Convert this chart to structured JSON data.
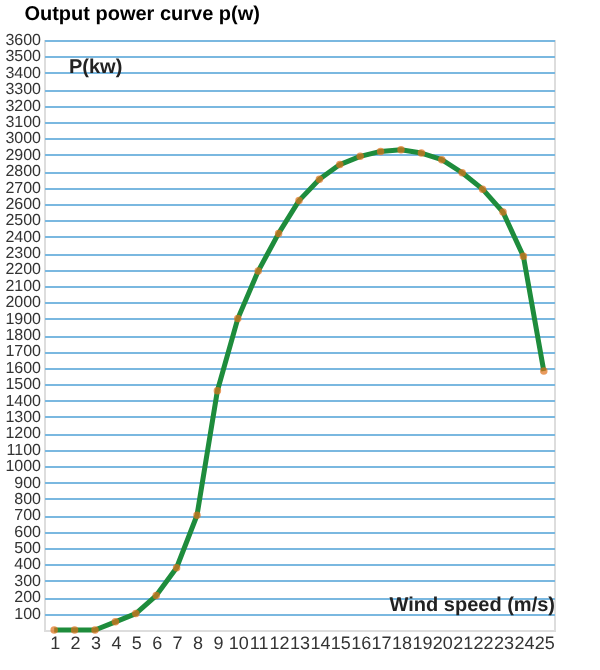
{
  "chart_data": {
    "type": "line",
    "title": "Output power curve p(w)",
    "xlabel": "Wind speed (m/s)",
    "ylabel": "P(kw)",
    "x": [
      1,
      2,
      3,
      4,
      5,
      6,
      7,
      8,
      9,
      10,
      11,
      12,
      13,
      14,
      15,
      16,
      17,
      18,
      19,
      20,
      21,
      22,
      23,
      24,
      25
    ],
    "series": [
      {
        "color": "#1e8c3c",
        "values": [
          0,
          0,
          0,
          50,
          100,
          210,
          380,
          700,
          1460,
          1900,
          2190,
          2420,
          2620,
          2750,
          2840,
          2890,
          2920,
          2930,
          2910,
          2870,
          2790,
          2690,
          2550,
          2280,
          1580
        ]
      }
    ],
    "xlim": [
      0.5,
      25.5
    ],
    "xticks": [
      1,
      2,
      3,
      4,
      5,
      6,
      7,
      8,
      9,
      10,
      11,
      12,
      13,
      14,
      15,
      16,
      17,
      18,
      19,
      20,
      21,
      22,
      23,
      24,
      25
    ],
    "ylim": [
      0,
      3600
    ],
    "yticks": [
      100,
      200,
      300,
      400,
      500,
      600,
      700,
      800,
      900,
      1000,
      1100,
      1200,
      1300,
      1400,
      1500,
      1600,
      1700,
      1800,
      1900,
      2000,
      2100,
      2200,
      2300,
      2400,
      2500,
      2600,
      2700,
      2800,
      2900,
      3000,
      3100,
      3200,
      3300,
      3400,
      3500,
      3600
    ],
    "grid": "y",
    "marker": "circle",
    "line_style": "solid",
    "legend": false
  }
}
